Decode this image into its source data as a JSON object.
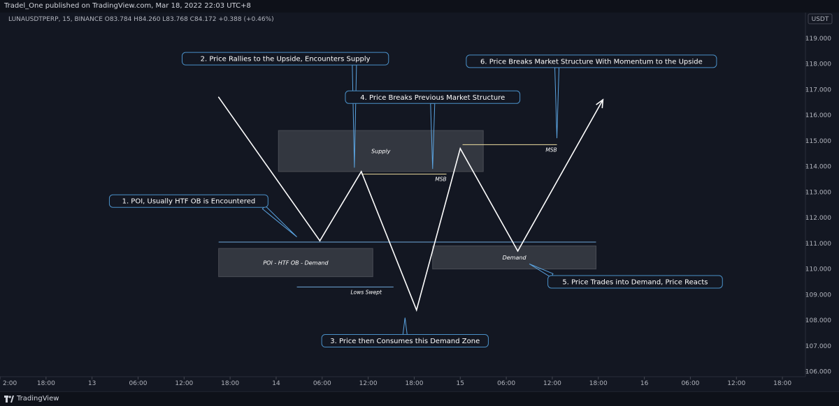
{
  "header": {
    "published": "Tradel_One published on TradingView.com, Mar 18, 2022 22:03 UTC+8",
    "symbol_line": "LUNAUSDTPERP, 15, BINANCE O83.784 H84.260 L83.768 C84.172 +0.388 (+0.46%)",
    "currency": "USDT"
  },
  "footer": {
    "brand": "TradingView"
  },
  "colors": {
    "background": "#131722",
    "price_line": "#ffffff",
    "callout_border": "#4a90c8",
    "leader": "#5aa3e0",
    "zone_fill": "#3a3d45",
    "msb_line": "#f0e0a0",
    "level_line": "#6fa8dc"
  },
  "chart_data": {
    "type": "line",
    "title": "",
    "xlabel": "",
    "ylabel": "",
    "ylim": [
      105.8,
      120.0
    ],
    "yticks": [
      106,
      107,
      108,
      109,
      110,
      111,
      112,
      113,
      114,
      115,
      116,
      117,
      118,
      119
    ],
    "x_tick_labels": [
      "2:00",
      "18:00",
      "13",
      "06:00",
      "12:00",
      "18:00",
      "14",
      "06:00",
      "12:00",
      "18:00",
      "15",
      "06:00",
      "12:00",
      "18:00",
      "16",
      "06:00",
      "12:00",
      "18:00"
    ],
    "xlim": [
      0,
      17.5
    ],
    "series": [
      {
        "x": [
          4.75,
          6.95,
          7.85,
          9.05,
          10.0,
          11.25,
          13.1
        ],
        "y": [
          116.7,
          111.1,
          113.8,
          108.4,
          114.7,
          110.7,
          116.6
        ]
      }
    ],
    "zones": [
      {
        "label": "Supply",
        "x0": 6.05,
        "x1": 10.5,
        "y0": 113.8,
        "y1": 115.4
      },
      {
        "label": "POI - HTF OB - Demand",
        "x0": 4.75,
        "x1": 8.1,
        "y0": 109.7,
        "y1": 110.8
      },
      {
        "label": "Demand",
        "x0": 9.4,
        "x1": 12.95,
        "y0": 110.0,
        "y1": 110.9
      }
    ],
    "levels": [
      {
        "label": "",
        "kind": "level",
        "x0": 4.75,
        "x1": 12.95,
        "y": 111.05
      },
      {
        "label": "MSB",
        "kind": "msb",
        "x0": 7.85,
        "x1": 9.7,
        "y": 113.7
      },
      {
        "label": "MSB",
        "kind": "msb",
        "x0": 10.05,
        "x1": 12.1,
        "y": 114.85
      },
      {
        "label": "Lows Swept",
        "kind": "level",
        "x0": 6.45,
        "x1": 8.55,
        "y": 109.3
      }
    ],
    "annotations": [
      {
        "text": "1. POI, Usually HTF OB is Encountered",
        "x": 4.1,
        "y": 112.65,
        "tx": 6.45,
        "ty": 111.25
      },
      {
        "text": "2. Price Rallies to the Upside, Encounters Supply",
        "x": 6.2,
        "y": 118.2,
        "tx": 7.7,
        "ty": 113.95
      },
      {
        "text": "3. Price then Consumes this Demand Zone",
        "x": 8.8,
        "y": 107.2,
        "tx": 8.8,
        "ty": 108.1
      },
      {
        "text": "4. Price Breaks Previous Market Structure",
        "x": 9.4,
        "y": 116.7,
        "tx": 9.4,
        "ty": 113.9
      },
      {
        "text": "5. Price Trades into Demand, Price Reacts",
        "x": 13.8,
        "y": 109.5,
        "tx": 11.5,
        "ty": 110.2
      },
      {
        "text": "6. Price Breaks Market Structure With Momentum to the Upside",
        "x": 12.85,
        "y": 118.1,
        "tx": 12.1,
        "ty": 115.1
      }
    ]
  }
}
